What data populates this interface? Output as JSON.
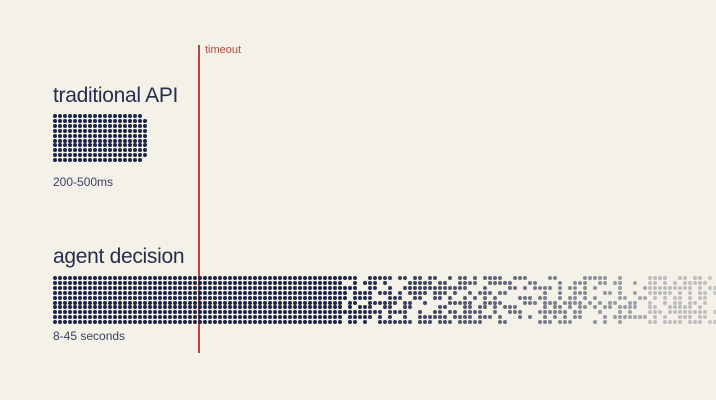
{
  "timeout": {
    "label": "timeout",
    "color": "#b9473f"
  },
  "traditional": {
    "title": "traditional API",
    "duration": "200-500ms",
    "dots": {
      "cols": 19,
      "rows": 10,
      "color": "#1c2547"
    }
  },
  "agent": {
    "title": "agent decision",
    "duration": "8-45 seconds",
    "dots": {
      "cols": 133,
      "rows": 10,
      "color": "#1c2547",
      "solid_until_col": 58
    }
  },
  "colors": {
    "background": "#f4f1e8",
    "dot": "#1c2547",
    "text": "#262d4d"
  }
}
